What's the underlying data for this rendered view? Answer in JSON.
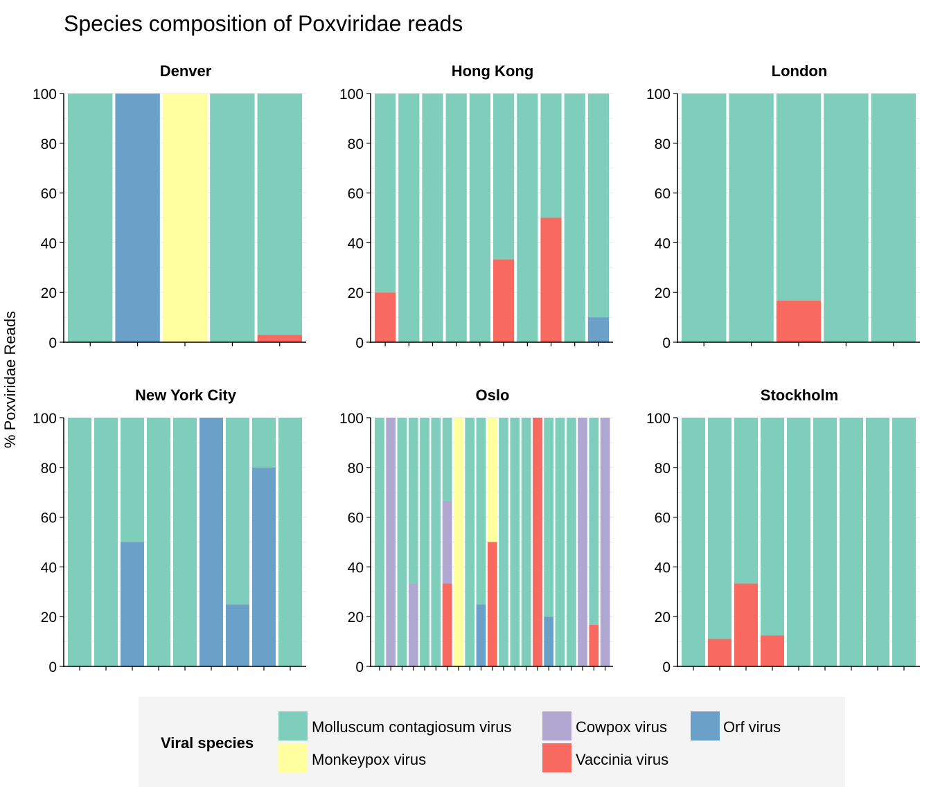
{
  "chart_data": {
    "type": "bar",
    "stacked": true,
    "title": "Species composition of Poxviridae reads",
    "ylabel": "% Poxviridae Reads",
    "xlabel": "",
    "ylim": [
      0,
      100
    ],
    "yticks": [
      "0",
      "20",
      "40",
      "60",
      "80",
      "100"
    ],
    "grid": true,
    "legend": {
      "title": "Viral species",
      "placement": "bottom",
      "entries": [
        {
          "name": "Molluscum contagiosum virus",
          "color": "#7FCDBB"
        },
        {
          "name": "Cowpox virus",
          "color": "#B0A8D0"
        },
        {
          "name": "Orf virus",
          "color": "#6BA0C8"
        },
        {
          "name": "Monkeypox virus",
          "color": "#FFFFA0"
        },
        {
          "name": "Vaccinia virus",
          "color": "#F8695F"
        }
      ]
    },
    "facets": [
      {
        "title": "Denver",
        "samples": [
          {
            "Molluscum contagiosum virus": 100
          },
          {
            "Orf virus": 100
          },
          {
            "Monkeypox virus": 100
          },
          {
            "Molluscum contagiosum virus": 100
          },
          {
            "Vaccinia virus": 3,
            "Molluscum contagiosum virus": 97
          }
        ]
      },
      {
        "title": "Hong Kong",
        "samples": [
          {
            "Vaccinia virus": 20,
            "Molluscum contagiosum virus": 80
          },
          {
            "Molluscum contagiosum virus": 100
          },
          {
            "Molluscum contagiosum virus": 100
          },
          {
            "Molluscum contagiosum virus": 100
          },
          {
            "Molluscum contagiosum virus": 100
          },
          {
            "Vaccinia virus": 33.3,
            "Molluscum contagiosum virus": 66.7
          },
          {
            "Molluscum contagiosum virus": 100
          },
          {
            "Vaccinia virus": 50,
            "Molluscum contagiosum virus": 50
          },
          {
            "Molluscum contagiosum virus": 100
          },
          {
            "Orf virus": 10,
            "Molluscum contagiosum virus": 90
          }
        ]
      },
      {
        "title": "London",
        "samples": [
          {
            "Molluscum contagiosum virus": 100
          },
          {
            "Molluscum contagiosum virus": 100
          },
          {
            "Vaccinia virus": 16.7,
            "Molluscum contagiosum virus": 83.3
          },
          {
            "Molluscum contagiosum virus": 100
          },
          {
            "Molluscum contagiosum virus": 100
          }
        ]
      },
      {
        "title": "New York City",
        "samples": [
          {
            "Molluscum contagiosum virus": 100
          },
          {
            "Molluscum contagiosum virus": 100
          },
          {
            "Orf virus": 50,
            "Molluscum contagiosum virus": 50
          },
          {
            "Molluscum contagiosum virus": 100
          },
          {
            "Molluscum contagiosum virus": 100
          },
          {
            "Orf virus": 100
          },
          {
            "Orf virus": 25,
            "Molluscum contagiosum virus": 75
          },
          {
            "Orf virus": 80,
            "Molluscum contagiosum virus": 20
          },
          {
            "Molluscum contagiosum virus": 100
          }
        ]
      },
      {
        "title": "Oslo",
        "samples": [
          {
            "Molluscum contagiosum virus": 100
          },
          {
            "Cowpox virus": 100
          },
          {
            "Molluscum contagiosum virus": 100
          },
          {
            "Cowpox virus": 33.3,
            "Molluscum contagiosum virus": 66.7
          },
          {
            "Molluscum contagiosum virus": 100
          },
          {
            "Molluscum contagiosum virus": 100
          },
          {
            "Vaccinia virus": 33.3,
            "Cowpox virus": 33.3,
            "Molluscum contagiosum virus": 33.4
          },
          {
            "Monkeypox virus": 100
          },
          {
            "Molluscum contagiosum virus": 100
          },
          {
            "Orf virus": 25,
            "Molluscum contagiosum virus": 75
          },
          {
            "Vaccinia virus": 50,
            "Monkeypox virus": 50
          },
          {
            "Molluscum contagiosum virus": 100
          },
          {
            "Molluscum contagiosum virus": 100
          },
          {
            "Molluscum contagiosum virus": 100
          },
          {
            "Vaccinia virus": 100
          },
          {
            "Orf virus": 20,
            "Molluscum contagiosum virus": 80
          },
          {
            "Molluscum contagiosum virus": 100
          },
          {
            "Molluscum contagiosum virus": 100
          },
          {
            "Cowpox virus": 100
          },
          {
            "Vaccinia virus": 16.7,
            "Molluscum contagiosum virus": 83.3
          },
          {
            "Cowpox virus": 100
          }
        ]
      },
      {
        "title": "Stockholm",
        "samples": [
          {
            "Molluscum contagiosum virus": 100
          },
          {
            "Vaccinia virus": 11,
            "Molluscum contagiosum virus": 89
          },
          {
            "Vaccinia virus": 33.3,
            "Molluscum contagiosum virus": 66.7
          },
          {
            "Vaccinia virus": 12.5,
            "Molluscum contagiosum virus": 87.5
          },
          {
            "Molluscum contagiosum virus": 100
          },
          {
            "Molluscum contagiosum virus": 100
          },
          {
            "Molluscum contagiosum virus": 100
          },
          {
            "Molluscum contagiosum virus": 100
          },
          {
            "Molluscum contagiosum virus": 100
          }
        ]
      }
    ]
  }
}
